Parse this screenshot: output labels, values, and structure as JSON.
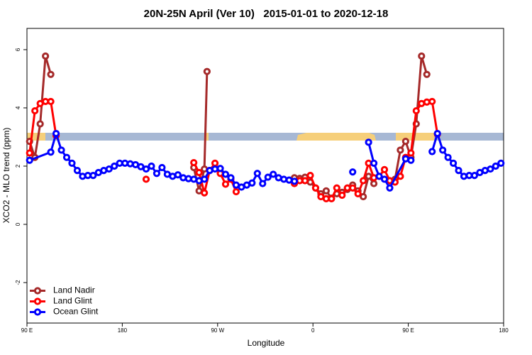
{
  "chart_data": {
    "type": "line",
    "title": "20N-25N April (Ver 10)   2015-01-01 to 2020-12-18",
    "x_label": "Longitude",
    "y_label": "XCO2 - MLO trend (ppm)",
    "xlim": [
      90,
      540
    ],
    "ylim": [
      -3.39,
      6.73
    ],
    "xticks": [
      {
        "value": 90,
        "label": "90 E"
      },
      {
        "value": 180,
        "label": "180"
      },
      {
        "value": 270,
        "label": "90 W"
      },
      {
        "value": 360,
        "label": "0"
      },
      {
        "value": 450,
        "label": "90 E"
      },
      {
        "value": 540,
        "label": "180"
      }
    ],
    "yticks": [
      -2,
      0,
      2,
      4,
      6
    ],
    "legend_position": "bottomleft",
    "series": [
      {
        "name": "Land Nadir",
        "color": "#a52a2a",
        "x": [
          92.5,
          97.5,
          102.5,
          107.5,
          112.5,
          null,
          247.5,
          252.5,
          257.5,
          260,
          null,
          342.5,
          347.5,
          352.5,
          357.5,
          362.5,
          367.5,
          372.5,
          377.5,
          382.5,
          387.5,
          392.5,
          397.5,
          402.5,
          407.5,
          412.5,
          417.5,
          null,
          437.5,
          442.5,
          447.5,
          452.5,
          457.5,
          462.5,
          467.5
        ],
        "values": [
          2.85,
          2.3,
          3.45,
          5.78,
          5.15,
          null,
          1.95,
          1.15,
          1.9,
          5.25,
          null,
          1.6,
          1.58,
          1.62,
          1.45,
          1.25,
          1.05,
          1.15,
          0.9,
          1.05,
          1.1,
          1.2,
          1.35,
          1.15,
          0.95,
          1.65,
          1.4,
          null,
          1.55,
          2.55,
          2.85,
          2.3,
          3.45,
          5.78,
          5.15
        ]
      },
      {
        "name": "Land Glint",
        "color": "#ff0000",
        "x": [
          92.5,
          97.5,
          102.5,
          107.5,
          112.5,
          117.5,
          null,
          202.5,
          null,
          247.5,
          252.5,
          257.5,
          262.5,
          267.5,
          272.5,
          277.5,
          282.5,
          287.5,
          null,
          342.5,
          347.5,
          352.5,
          357.5,
          362.5,
          367.5,
          372.5,
          377.5,
          382.5,
          387.5,
          392.5,
          397.5,
          402.5,
          407.5,
          412.5,
          417.5,
          422.5,
          427.5,
          432.5,
          437.5,
          442.5,
          447.5,
          452.5,
          457.5,
          462.5,
          467.5,
          472.5,
          477.5
        ],
        "values": [
          2.45,
          3.9,
          4.15,
          4.22,
          4.22,
          3.05,
          null,
          1.55,
          null,
          2.12,
          1.78,
          1.08,
          1.85,
          2.1,
          1.75,
          1.38,
          1.55,
          1.12,
          null,
          1.4,
          1.5,
          1.5,
          1.68,
          1.25,
          0.95,
          0.88,
          0.88,
          1.25,
          1.0,
          1.25,
          1.25,
          1.05,
          1.5,
          2.1,
          1.6,
          1.65,
          1.88,
          1.5,
          1.45,
          1.65,
          2.3,
          2.45,
          3.9,
          4.15,
          4.2,
          4.22,
          3.1
        ]
      },
      {
        "name": "Ocean Glint",
        "color": "#0000ff",
        "x": [
          92.5,
          112.5,
          117.5,
          122.5,
          127.5,
          132.5,
          137.5,
          142.5,
          147.5,
          152.5,
          157.5,
          162.5,
          167.5,
          172.5,
          177.5,
          182.5,
          187.5,
          192.5,
          197.5,
          202.5,
          207.5,
          212.5,
          217.5,
          222.5,
          227.5,
          232.5,
          237.5,
          242.5,
          247.5,
          252.5,
          257.5,
          262.5,
          267.5,
          272.5,
          277.5,
          282.5,
          287.5,
          292.5,
          297.5,
          302.5,
          307.5,
          312.5,
          317.5,
          322.5,
          327.5,
          332.5,
          337.5,
          342.5,
          null,
          397.5,
          null,
          412.5,
          417.5,
          422.5,
          427.5,
          432.5,
          447.5,
          452.5,
          null,
          472.5,
          477.5,
          482.5,
          487.5,
          492.5,
          497.5,
          502.5,
          507.5,
          512.5,
          517.5,
          522.5,
          527.5,
          532.5,
          537.5
        ],
        "values": [
          2.2,
          2.48,
          3.12,
          2.55,
          2.3,
          2.1,
          1.85,
          1.65,
          1.68,
          1.68,
          1.78,
          1.85,
          1.9,
          2.0,
          2.1,
          2.1,
          2.08,
          2.05,
          1.98,
          1.9,
          2.0,
          1.75,
          1.95,
          1.72,
          1.65,
          1.7,
          1.6,
          1.57,
          1.55,
          1.5,
          1.55,
          1.85,
          1.9,
          1.92,
          1.72,
          1.6,
          1.35,
          1.28,
          1.35,
          1.42,
          1.75,
          1.4,
          1.62,
          1.72,
          1.6,
          1.55,
          1.52,
          1.48,
          null,
          1.8,
          null,
          2.82,
          2.1,
          1.65,
          1.55,
          1.25,
          2.25,
          2.2,
          null,
          2.5,
          3.12,
          2.55,
          2.3,
          2.1,
          1.85,
          1.65,
          1.68,
          1.68,
          1.78,
          1.85,
          1.9,
          2.0,
          2.1
        ]
      }
    ]
  }
}
